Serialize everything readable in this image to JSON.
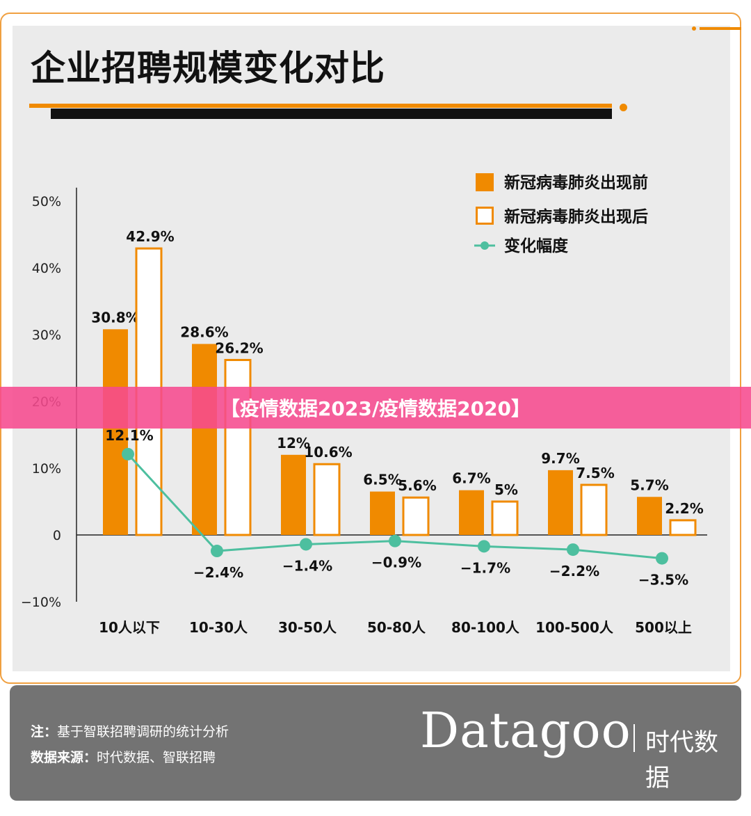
{
  "title": "企业招聘规模变化对比",
  "banner": "【疫情数据2023/疫情数据2020】",
  "chart_data": {
    "type": "bar",
    "categories": [
      "10人以下",
      "10-30人",
      "30-50人",
      "50-80人",
      "80-100人",
      "100-500人",
      "500以上"
    ],
    "series": [
      {
        "name": "新冠病毒肺炎出现前",
        "kind": "bar",
        "color": "#f08a00",
        "values": [
          30.8,
          28.6,
          12,
          6.5,
          6.7,
          9.7,
          5.7
        ],
        "labels": [
          "30.8%",
          "28.6%",
          "12%",
          "6.5%",
          "6.7%",
          "9.7%",
          "5.7%"
        ]
      },
      {
        "name": "新冠病毒肺炎出现后",
        "kind": "bar-outline",
        "color": "#f08a00",
        "values": [
          42.9,
          26.2,
          10.6,
          5.6,
          5,
          7.5,
          2.2
        ],
        "labels": [
          "42.9%",
          "26.2%",
          "10.6%",
          "5.6%",
          "5%",
          "7.5%",
          "2.2%"
        ]
      },
      {
        "name": "变化幅度",
        "kind": "line",
        "color": "#4dbf9f",
        "values": [
          12.1,
          -2.4,
          -1.4,
          -0.9,
          -1.7,
          -2.2,
          -3.5
        ],
        "labels": [
          "12.1%",
          "−2.4%",
          "−1.4%",
          "−0.9%",
          "−1.7%",
          "−2.2%",
          "−3.5%"
        ]
      }
    ],
    "yticks": [
      -10,
      0,
      10,
      20,
      30,
      40,
      50
    ],
    "ytick_labels": [
      "−10%",
      "0",
      "10%",
      "20%",
      "30%",
      "40%",
      "50%"
    ],
    "ylim": [
      -10,
      52
    ],
    "legend_position": "top-right",
    "grid": false
  },
  "footer": {
    "note_label": "注：",
    "note_text": "基于智联招聘调研的统计分析",
    "source_label": "数据来源：",
    "source_text": "时代数据、智联招聘",
    "brand": "Datagoo",
    "brand_sub": "时代数据"
  }
}
